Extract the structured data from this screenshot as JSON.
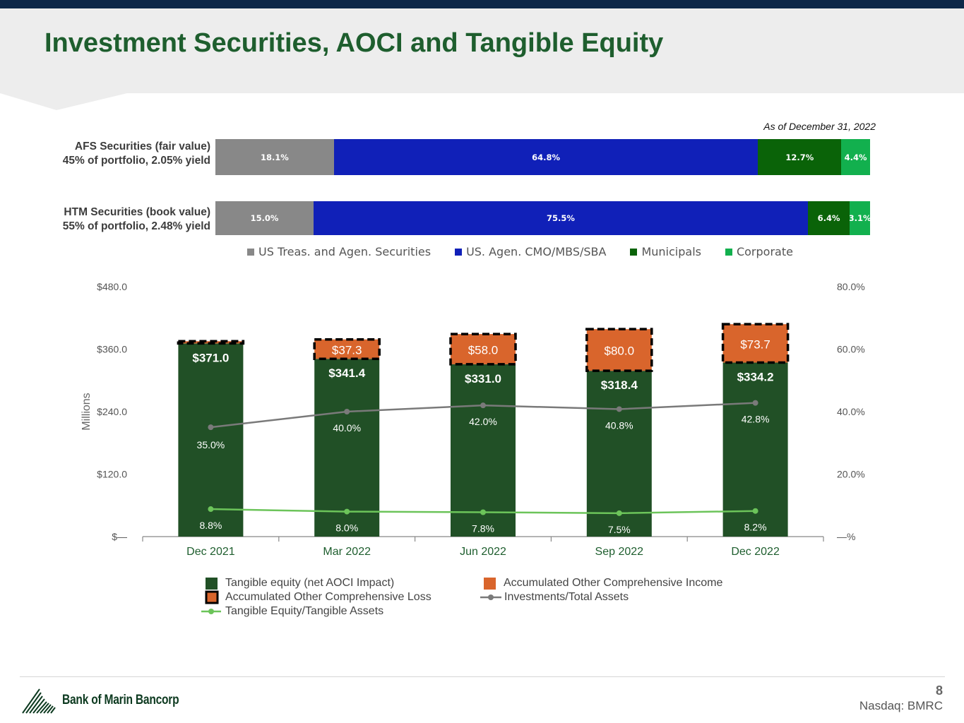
{
  "title": "Investment Securities, AOCI and Tangible Equity",
  "as_of": "As of December 31, 2022",
  "securities": {
    "rows": [
      {
        "label1": "AFS Securities (fair value)",
        "label2": "45% of portfolio, 2.05% yield",
        "segments": [
          {
            "value": 18.1,
            "label": "18.1%",
            "cls": "gray"
          },
          {
            "value": 64.8,
            "label": "64.8%",
            "cls": "blue"
          },
          {
            "value": 12.7,
            "label": "12.7%",
            "cls": "dgreen"
          },
          {
            "value": 4.4,
            "label": "4.4%",
            "cls": "lgreen"
          }
        ]
      },
      {
        "label1": "HTM Securities (book value)",
        "label2": "55% of portfolio, 2.48% yield",
        "segments": [
          {
            "value": 15.0,
            "label": "15.0%",
            "cls": "gray"
          },
          {
            "value": 75.5,
            "label": "75.5%",
            "cls": "blue"
          },
          {
            "value": 6.4,
            "label": "6.4%",
            "cls": "dgreen"
          },
          {
            "value": 3.1,
            "label": "3.1%",
            "cls": "lgreen"
          }
        ]
      }
    ],
    "legend": [
      {
        "label": "US Treas. and Agen. Securities",
        "color": "#888888"
      },
      {
        "label": "US. Agen. CMO/MBS/SBA",
        "color": "#1020b8"
      },
      {
        "label": "Municipals",
        "color": "#0a6308"
      },
      {
        "label": "Corporate",
        "color": "#12b04e"
      }
    ]
  },
  "chart_data": {
    "type": "bar",
    "categories": [
      "Dec 2021",
      "Mar 2022",
      "Jun 2022",
      "Sep 2022",
      "Dec 2022"
    ],
    "ylabel": "Millions",
    "ylim": [
      0,
      480
    ],
    "y2lim": [
      0,
      80
    ],
    "y_ticks": [
      "$480.0",
      "$360.0",
      "$240.0",
      "$120.0",
      "$—"
    ],
    "y2_ticks": [
      "80.0%",
      "60.0%",
      "40.0%",
      "20.0%",
      "—%"
    ],
    "series": [
      {
        "name": "Tangible equity (net AOCI Impact)",
        "values": [
          371.0,
          341.4,
          331.0,
          318.4,
          334.2
        ],
        "labels": [
          "$371.0",
          "$341.4",
          "$331.0",
          "$318.4",
          "$334.2"
        ],
        "color": "#215026"
      },
      {
        "name": "Accumulated Other Comprehensive Loss",
        "values": [
          4.2,
          37.3,
          58.0,
          80.0,
          73.7
        ],
        "labels": [
          "",
          "$37.3",
          "$58.0",
          "$80.0",
          "$73.7"
        ],
        "color": "#d9652c"
      },
      {
        "name": "Investments/Total Assets",
        "axis": "right",
        "values": [
          35.0,
          40.0,
          42.0,
          40.8,
          42.8
        ],
        "labels": [
          "35.0%",
          "40.0%",
          "42.0%",
          "40.8%",
          "42.8%"
        ],
        "color": "#7a7a7a"
      },
      {
        "name": "Tangible Equity/Tangible Assets",
        "axis": "right",
        "values": [
          8.8,
          8.0,
          7.8,
          7.5,
          8.2
        ],
        "labels": [
          "8.8%",
          "8.0%",
          "7.8%",
          "7.5%",
          "8.2%"
        ],
        "color": "#6cc45a"
      }
    ]
  },
  "legend": {
    "tangible_equity": "Tangible equity (net AOCI Impact)",
    "aoci_income": "Accumulated Other Comprehensive Income",
    "aoci_loss": "Accumulated Other Comprehensive Loss",
    "investments_ratio": "Investments/Total Assets",
    "te_ratio": "Tangible Equity/Tangible Assets"
  },
  "footer": {
    "company": "Bank of Marin Bancorp",
    "page": "8",
    "ticker": "Nasdaq: BMRC"
  }
}
